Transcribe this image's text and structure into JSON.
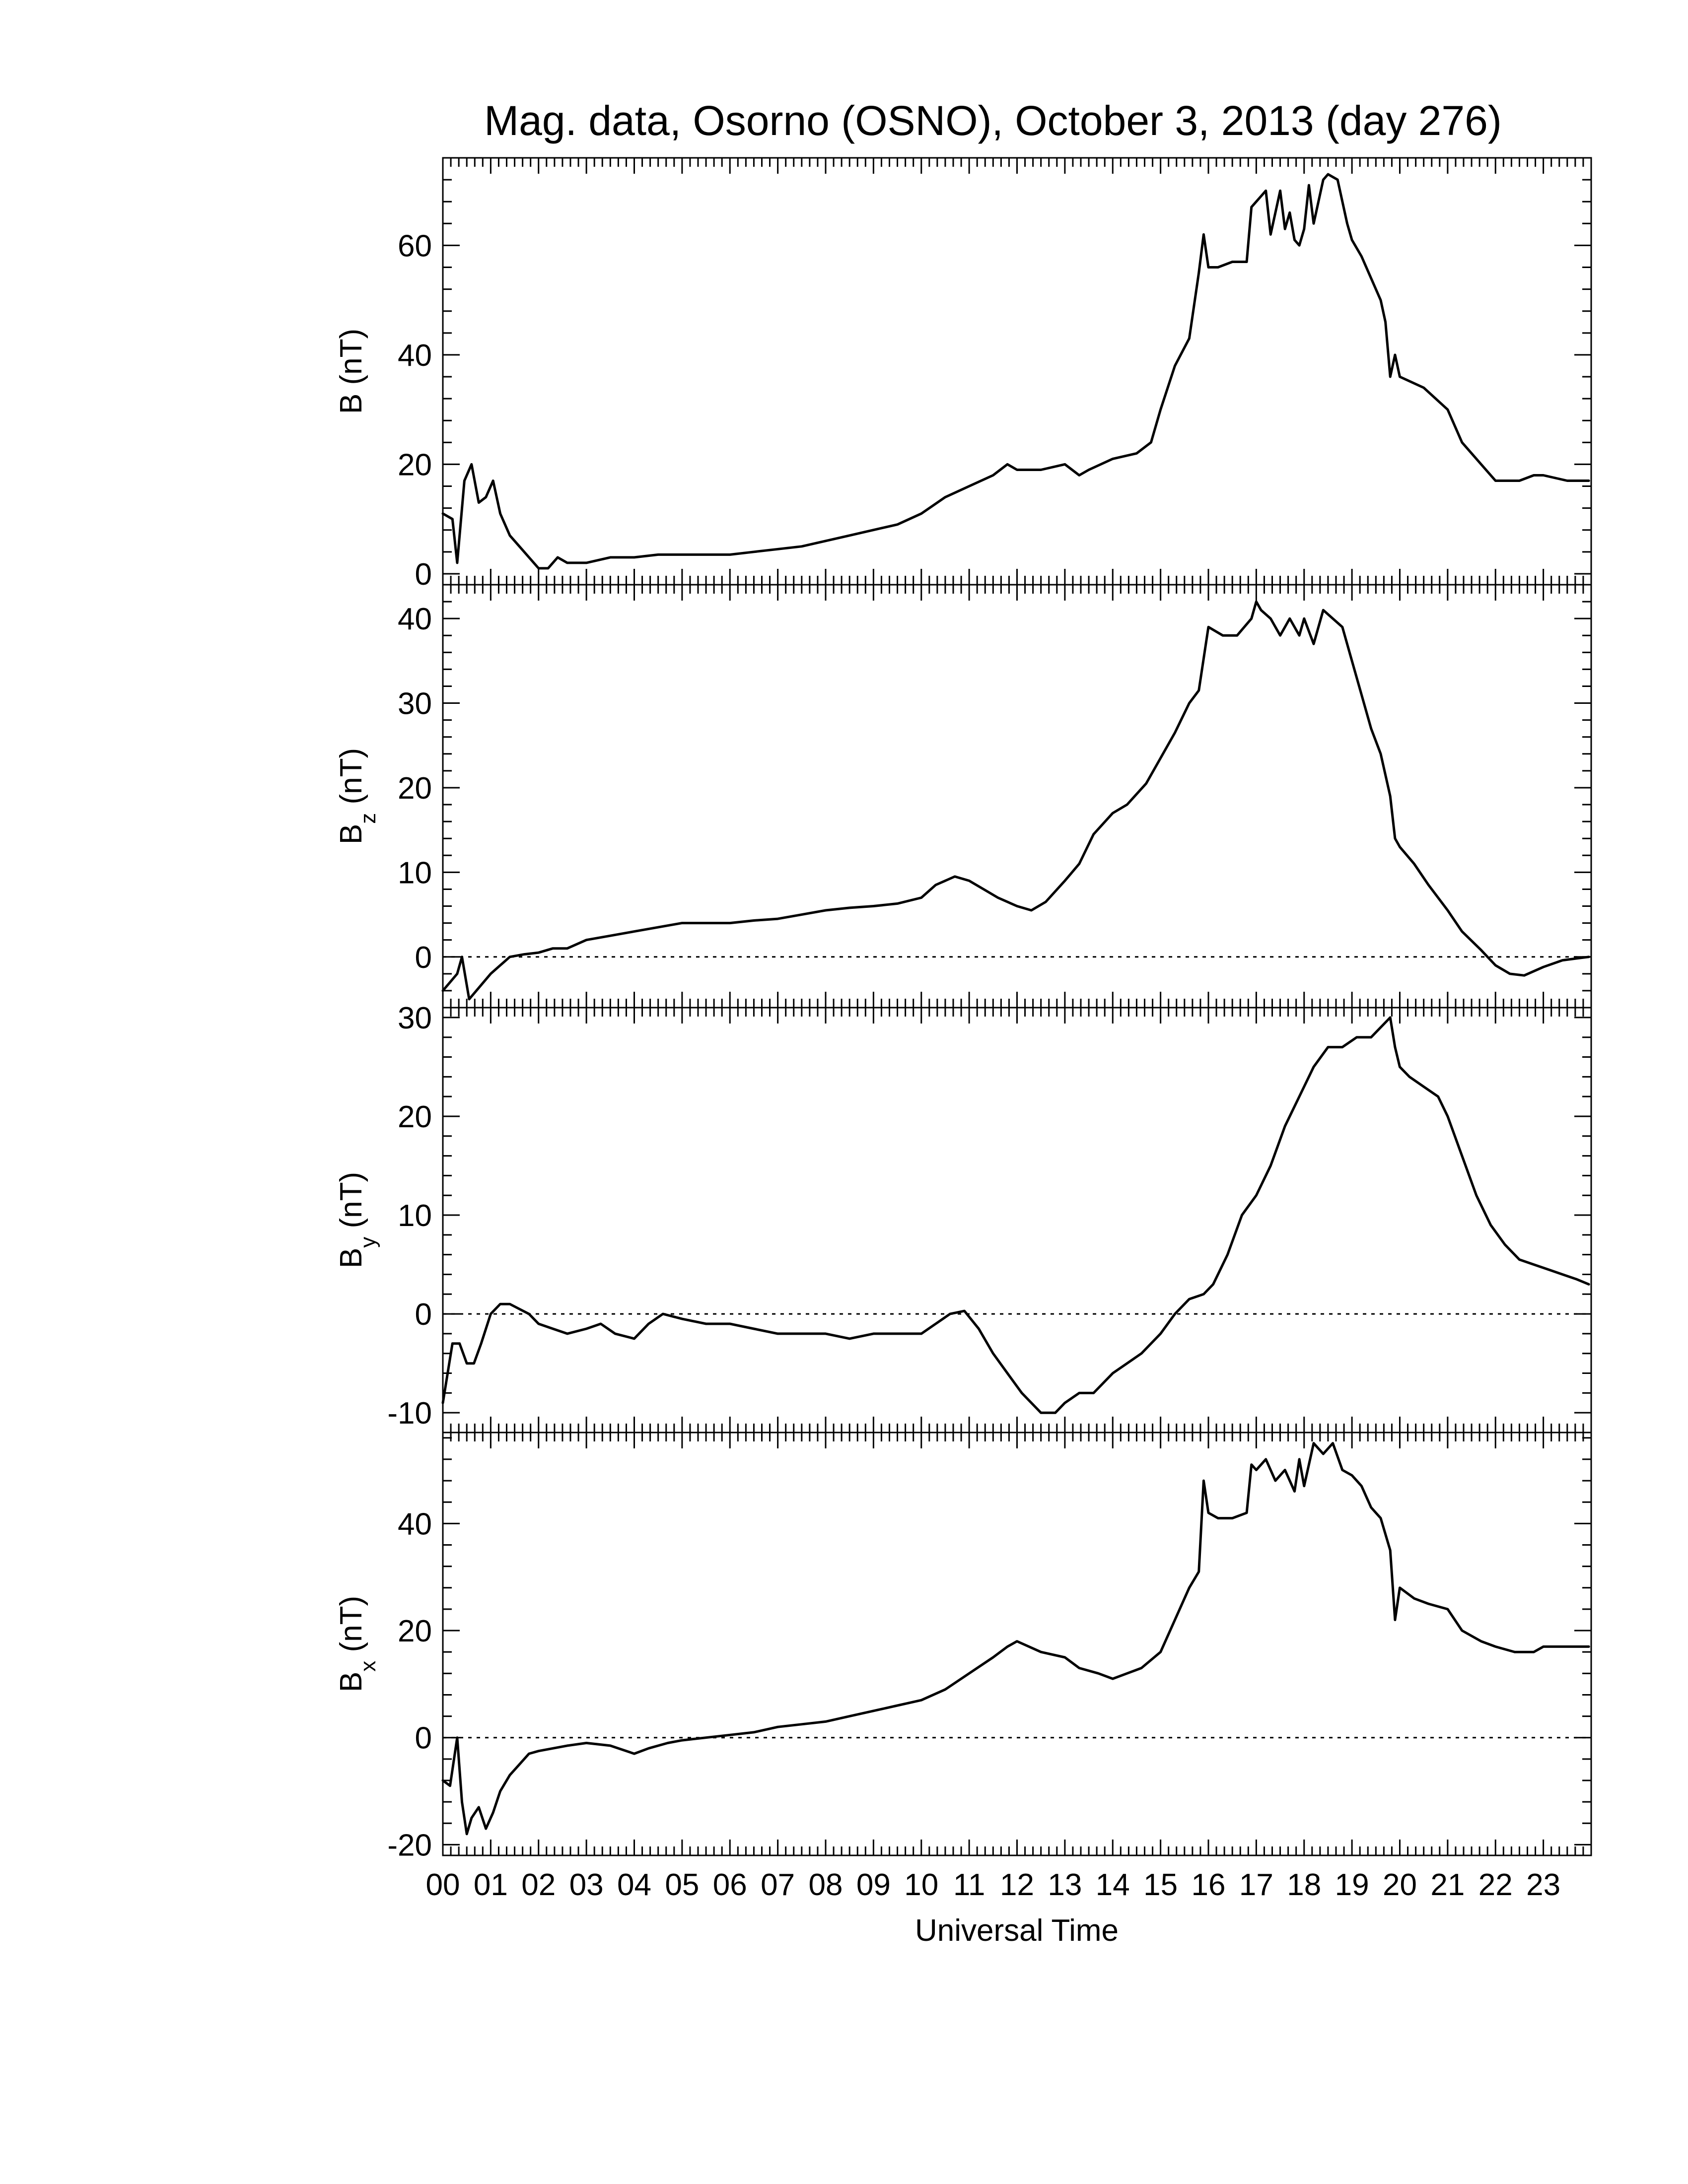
{
  "chart_data": {
    "type": "line",
    "title": "Mag. data, Osorno (OSNO), October 3, 2013 (day 276)",
    "xlabel": "Universal Time",
    "x_tick_labels": [
      "00",
      "01",
      "02",
      "03",
      "04",
      "05",
      "06",
      "07",
      "08",
      "09",
      "10",
      "11",
      "12",
      "13",
      "14",
      "15",
      "16",
      "17",
      "18",
      "19",
      "20",
      "21",
      "22",
      "23"
    ],
    "xlim": [
      0,
      24
    ],
    "line_color": "#000000",
    "panels": [
      {
        "ylabel": "B (nT)",
        "ylabel_main": "B",
        "ylabel_sub": "",
        "ylabel_unit": " (nT)",
        "ylim": [
          -2,
          76
        ],
        "yticks": [
          0,
          20,
          40,
          60
        ],
        "ytick_labels": [
          "0",
          "20",
          "40",
          "60"
        ],
        "zero_line": false,
        "series": [
          {
            "x": [
              0.0,
              0.2,
              0.3,
              0.45,
              0.6,
              0.75,
              0.9,
              1.05,
              1.2,
              1.4,
              1.6,
              1.8,
              2.0,
              2.2,
              2.4,
              2.6,
              2.8,
              3.0,
              3.5,
              4.0,
              4.5,
              5.0,
              5.5,
              6.0,
              6.5,
              7.0,
              7.5,
              8.0,
              8.5,
              9.0,
              9.5,
              10.0,
              10.5,
              11.0,
              11.5,
              11.8,
              12.0,
              12.5,
              13.0,
              13.3,
              13.5,
              14.0,
              14.5,
              14.8,
              15.0,
              15.3,
              15.6,
              15.8,
              15.9,
              16.0,
              16.2,
              16.5,
              16.8,
              16.9,
              17.0,
              17.2,
              17.3,
              17.5,
              17.6,
              17.7,
              17.8,
              17.9,
              18.0,
              18.1,
              18.2,
              18.4,
              18.5,
              18.7,
              18.9,
              19.0,
              19.2,
              19.4,
              19.6,
              19.7,
              19.8,
              19.9,
              20.0,
              20.5,
              21.0,
              21.3,
              21.7,
              22.0,
              22.5,
              22.8,
              23.0,
              23.5,
              23.95
            ],
            "y": [
              11,
              10,
              2,
              17,
              20,
              13,
              14,
              17,
              11,
              7,
              5,
              3,
              1,
              1,
              3,
              2,
              2,
              2,
              3,
              3,
              3.5,
              3.5,
              3.5,
              3.5,
              4,
              4.5,
              5,
              6,
              7,
              8,
              9,
              11,
              14,
              16,
              18,
              20,
              19,
              19,
              20,
              18,
              19,
              21,
              22,
              24,
              30,
              38,
              43,
              55,
              62,
              56,
              56,
              57,
              57,
              67,
              68,
              70,
              62,
              70,
              63,
              66,
              61,
              60,
              63,
              71,
              64,
              72,
              73,
              72,
              64,
              61,
              58,
              54,
              50,
              46,
              36,
              40,
              36,
              34,
              30,
              24,
              20,
              17,
              17,
              18,
              18,
              17,
              17
            ]
          }
        ]
      },
      {
        "ylabel": "Bz (nT)",
        "ylabel_main": "B",
        "ylabel_sub": "z",
        "ylabel_unit": " (nT)",
        "ylim": [
          -6,
          44
        ],
        "yticks": [
          0,
          10,
          20,
          30,
          40
        ],
        "ytick_labels": [
          "0",
          "10",
          "20",
          "30",
          "40"
        ],
        "zero_line": true,
        "series": [
          {
            "x": [
              0.0,
              0.15,
              0.3,
              0.4,
              0.55,
              0.7,
              0.85,
              1.0,
              1.2,
              1.4,
              1.7,
              2.0,
              2.3,
              2.6,
              3.0,
              3.5,
              4.0,
              4.5,
              5.0,
              5.5,
              6.0,
              6.5,
              7.0,
              7.5,
              8.0,
              8.5,
              9.0,
              9.5,
              10.0,
              10.3,
              10.7,
              11.0,
              11.3,
              11.6,
              12.0,
              12.3,
              12.6,
              13.0,
              13.3,
              13.6,
              14.0,
              14.3,
              14.7,
              15.0,
              15.3,
              15.6,
              15.8,
              16.0,
              16.3,
              16.6,
              16.9,
              17.0,
              17.1,
              17.3,
              17.5,
              17.7,
              17.9,
              18.0,
              18.2,
              18.4,
              18.6,
              18.8,
              19.0,
              19.2,
              19.4,
              19.6,
              19.8,
              19.9,
              20.0,
              20.3,
              20.6,
              21.0,
              21.3,
              21.7,
              22.0,
              22.3,
              22.6,
              23.0,
              23.4,
              23.95
            ],
            "y": [
              -4,
              -3,
              -2,
              0,
              -5,
              -4,
              -3,
              -2,
              -1,
              0,
              0.3,
              0.5,
              1,
              1,
              2,
              2.5,
              3,
              3.5,
              4,
              4,
              4,
              4.3,
              4.5,
              5,
              5.5,
              5.8,
              6,
              6.3,
              7,
              8.5,
              9.5,
              9,
              8,
              7,
              6,
              5.5,
              6.5,
              9,
              11,
              14.5,
              17,
              18,
              20.5,
              23.5,
              26.5,
              30,
              31.5,
              39,
              38,
              38,
              40,
              42,
              41,
              40,
              38,
              40,
              38,
              40,
              37,
              41,
              40,
              39,
              35,
              31,
              27,
              24,
              19,
              14,
              13,
              11,
              8.5,
              5.5,
              3,
              0.8,
              -1,
              -2,
              -2.2,
              -1.2,
              -0.4,
              0
            ]
          }
        ]
      },
      {
        "ylabel": "By (nT)",
        "ylabel_main": "B",
        "ylabel_sub": "y",
        "ylabel_unit": " (nT)",
        "ylim": [
          -12,
          31
        ],
        "yticks": [
          -10,
          0,
          10,
          20,
          30
        ],
        "ytick_labels": [
          "-10",
          "0",
          "10",
          "20",
          "30"
        ],
        "zero_line": true,
        "series": [
          {
            "x": [
              0.0,
              0.2,
              0.35,
              0.5,
              0.65,
              0.8,
              1.0,
              1.2,
              1.4,
              1.6,
              1.8,
              2.0,
              2.3,
              2.6,
              3.0,
              3.3,
              3.6,
              4.0,
              4.3,
              4.6,
              5.0,
              5.5,
              6.0,
              6.5,
              7.0,
              7.5,
              8.0,
              8.5,
              9.0,
              9.5,
              10.0,
              10.3,
              10.6,
              10.9,
              11.2,
              11.5,
              11.8,
              12.1,
              12.5,
              12.8,
              13.0,
              13.3,
              13.6,
              14.0,
              14.3,
              14.6,
              15.0,
              15.3,
              15.6,
              15.9,
              16.1,
              16.4,
              16.7,
              17.0,
              17.3,
              17.6,
              17.9,
              18.2,
              18.5,
              18.8,
              19.1,
              19.4,
              19.6,
              19.8,
              19.9,
              20.0,
              20.2,
              20.5,
              20.8,
              21.0,
              21.3,
              21.6,
              21.9,
              22.2,
              22.5,
              22.8,
              23.1,
              23.4,
              23.7,
              23.95
            ],
            "y": [
              -9,
              -3,
              -3,
              -5,
              -5,
              -3,
              0,
              1,
              1,
              0.5,
              0,
              -1,
              -1.5,
              -2,
              -1.5,
              -1,
              -2,
              -2.5,
              -1,
              0,
              -0.5,
              -1,
              -1,
              -1.5,
              -2,
              -2,
              -2,
              -2.5,
              -2,
              -2,
              -2,
              -1,
              0,
              0.3,
              -1.5,
              -4,
              -6,
              -8,
              -10,
              -10,
              -9,
              -8,
              -8,
              -6,
              -5,
              -4,
              -2,
              0,
              1.5,
              2,
              3,
              6,
              10,
              12,
              15,
              19,
              22,
              25,
              27,
              27,
              28,
              28,
              29,
              30,
              27,
              25,
              24,
              23,
              22,
              20,
              16,
              12,
              9,
              7,
              5.5,
              5,
              4.5,
              4,
              3.5,
              3
            ]
          }
        ]
      },
      {
        "ylabel": "Bx (nT)",
        "ylabel_main": "B",
        "ylabel_sub": "x",
        "ylabel_unit": " (nT)",
        "ylim": [
          -22,
          57
        ],
        "yticks": [
          -20,
          0,
          20,
          40
        ],
        "ytick_labels": [
          "-20",
          "0",
          "20",
          "40"
        ],
        "zero_line": true,
        "series": [
          {
            "x": [
              0.0,
              0.15,
              0.3,
              0.4,
              0.5,
              0.6,
              0.75,
              0.9,
              1.05,
              1.2,
              1.4,
              1.6,
              1.8,
              2.0,
              2.3,
              2.6,
              3.0,
              3.5,
              4.0,
              4.3,
              4.7,
              5.0,
              5.5,
              6.0,
              6.5,
              7.0,
              7.5,
              8.0,
              8.5,
              9.0,
              9.5,
              10.0,
              10.5,
              11.0,
              11.5,
              11.8,
              12.0,
              12.5,
              13.0,
              13.3,
              13.7,
              14.0,
              14.3,
              14.6,
              15.0,
              15.3,
              15.6,
              15.8,
              15.9,
              16.0,
              16.2,
              16.5,
              16.8,
              16.9,
              17.0,
              17.2,
              17.4,
              17.6,
              17.8,
              17.9,
              18.0,
              18.1,
              18.2,
              18.4,
              18.6,
              18.8,
              19.0,
              19.2,
              19.4,
              19.6,
              19.8,
              19.9,
              20.0,
              20.3,
              20.6,
              21.0,
              21.3,
              21.7,
              22.0,
              22.4,
              22.8,
              23.0,
              23.5,
              23.95
            ],
            "y": [
              -8,
              -9,
              0,
              -12,
              -18,
              -15,
              -13,
              -17,
              -14,
              -10,
              -7,
              -5,
              -3,
              -2.5,
              -2,
              -1.5,
              -1,
              -1.5,
              -3,
              -2,
              -1,
              -0.5,
              0,
              0.5,
              1,
              2,
              2.5,
              3,
              4,
              5,
              6,
              7,
              9,
              12,
              15,
              17,
              18,
              16,
              15,
              13,
              12,
              11,
              12,
              13,
              16,
              22,
              28,
              31,
              48,
              42,
              41,
              41,
              42,
              51,
              50,
              52,
              48,
              50,
              46,
              52,
              47,
              51,
              55,
              53,
              55,
              50,
              49,
              47,
              43,
              41,
              35,
              22,
              28,
              26,
              25,
              24,
              20,
              18,
              17,
              16,
              16,
              17,
              17,
              17
            ]
          }
        ]
      }
    ]
  }
}
